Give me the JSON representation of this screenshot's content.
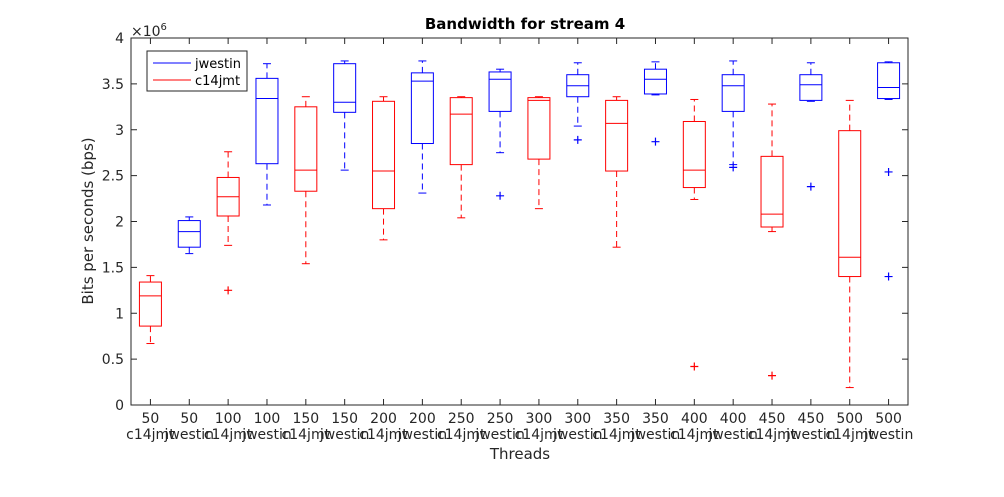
{
  "chart_data": {
    "type": "box",
    "title": "Bandwidth for stream 4",
    "xlabel": "Threads",
    "ylabel": "Bits per seconds (bps)",
    "y_exponent_label": "×10",
    "y_exponent": "6",
    "ylim": [
      0,
      4
    ],
    "yticks": [
      "0",
      "0.5",
      "1",
      "1.5",
      "2",
      "2.5",
      "3",
      "3.5",
      "4"
    ],
    "ytick_values": [
      0,
      0.5,
      1,
      1.5,
      2,
      2.5,
      3,
      3.5,
      4
    ],
    "grid": false,
    "legend_position": "top-left",
    "series": [
      {
        "name": "jwestin",
        "color": "#0000ff"
      },
      {
        "name": "c14jmt",
        "color": "#ff0000"
      }
    ],
    "boxes": [
      {
        "threads": "50",
        "group": "c14jmt",
        "color": "#ff0000",
        "whisker_low": 0.67,
        "q1": 0.86,
        "median": 1.19,
        "q3": 1.34,
        "whisker_high": 1.41,
        "outliers": []
      },
      {
        "threads": "50",
        "group": "jwestin",
        "color": "#0000ff",
        "whisker_low": 1.65,
        "q1": 1.72,
        "median": 1.89,
        "q3": 2.01,
        "whisker_high": 2.05,
        "outliers": []
      },
      {
        "threads": "100",
        "group": "c14jmt",
        "color": "#ff0000",
        "whisker_low": 1.74,
        "q1": 2.06,
        "median": 2.27,
        "q3": 2.48,
        "whisker_high": 2.76,
        "outliers": [
          1.25
        ]
      },
      {
        "threads": "100",
        "group": "jwestin",
        "color": "#0000ff",
        "whisker_low": 2.18,
        "q1": 2.63,
        "median": 3.34,
        "q3": 3.56,
        "whisker_high": 3.72,
        "outliers": []
      },
      {
        "threads": "150",
        "group": "c14jmt",
        "color": "#ff0000",
        "whisker_low": 1.54,
        "q1": 2.33,
        "median": 2.56,
        "q3": 3.25,
        "whisker_high": 3.36,
        "outliers": []
      },
      {
        "threads": "150",
        "group": "jwestin",
        "color": "#0000ff",
        "whisker_low": 2.56,
        "q1": 3.19,
        "median": 3.3,
        "q3": 3.72,
        "whisker_high": 3.75,
        "outliers": []
      },
      {
        "threads": "200",
        "group": "c14jmt",
        "color": "#ff0000",
        "whisker_low": 1.8,
        "q1": 2.14,
        "median": 2.55,
        "q3": 3.31,
        "whisker_high": 3.36,
        "outliers": []
      },
      {
        "threads": "200",
        "group": "jwestin",
        "color": "#0000ff",
        "whisker_low": 2.31,
        "q1": 2.85,
        "median": 3.53,
        "q3": 3.62,
        "whisker_high": 3.75,
        "outliers": []
      },
      {
        "threads": "250",
        "group": "c14jmt",
        "color": "#ff0000",
        "whisker_low": 2.04,
        "q1": 2.62,
        "median": 3.17,
        "q3": 3.35,
        "whisker_high": 3.36,
        "outliers": []
      },
      {
        "threads": "250",
        "group": "jwestin",
        "color": "#0000ff",
        "whisker_low": 2.75,
        "q1": 3.2,
        "median": 3.55,
        "q3": 3.63,
        "whisker_high": 3.66,
        "outliers": [
          2.28
        ]
      },
      {
        "threads": "300",
        "group": "c14jmt",
        "color": "#ff0000",
        "whisker_low": 2.14,
        "q1": 2.68,
        "median": 3.32,
        "q3": 3.35,
        "whisker_high": 3.36,
        "outliers": []
      },
      {
        "threads": "300",
        "group": "jwestin",
        "color": "#0000ff",
        "whisker_low": 3.04,
        "q1": 3.36,
        "median": 3.48,
        "q3": 3.6,
        "whisker_high": 3.73,
        "outliers": [
          2.89
        ]
      },
      {
        "threads": "350",
        "group": "c14jmt",
        "color": "#ff0000",
        "whisker_low": 1.72,
        "q1": 2.55,
        "median": 3.07,
        "q3": 3.32,
        "whisker_high": 3.36,
        "outliers": []
      },
      {
        "threads": "350",
        "group": "jwestin",
        "color": "#0000ff",
        "whisker_low": 3.38,
        "q1": 3.39,
        "median": 3.55,
        "q3": 3.66,
        "whisker_high": 3.74,
        "outliers": [
          2.87
        ]
      },
      {
        "threads": "400",
        "group": "c14jmt",
        "color": "#ff0000",
        "whisker_low": 2.24,
        "q1": 2.37,
        "median": 2.56,
        "q3": 3.09,
        "whisker_high": 3.33,
        "outliers": [
          0.42
        ]
      },
      {
        "threads": "400",
        "group": "jwestin",
        "color": "#0000ff",
        "whisker_low": 2.62,
        "q1": 3.2,
        "median": 3.48,
        "q3": 3.6,
        "whisker_high": 3.75,
        "outliers": [
          2.59
        ]
      },
      {
        "threads": "450",
        "group": "c14jmt",
        "color": "#ff0000",
        "whisker_low": 1.89,
        "q1": 1.94,
        "median": 2.08,
        "q3": 2.71,
        "whisker_high": 3.28,
        "outliers": [
          0.32
        ]
      },
      {
        "threads": "450",
        "group": "jwestin",
        "color": "#0000ff",
        "whisker_low": 3.31,
        "q1": 3.32,
        "median": 3.49,
        "q3": 3.6,
        "whisker_high": 3.73,
        "outliers": [
          2.38
        ]
      },
      {
        "threads": "500",
        "group": "c14jmt",
        "color": "#ff0000",
        "whisker_low": 0.19,
        "q1": 1.4,
        "median": 1.61,
        "q3": 2.99,
        "whisker_high": 3.32,
        "outliers": []
      },
      {
        "threads": "500",
        "group": "jwestin",
        "color": "#0000ff",
        "whisker_low": 3.33,
        "q1": 3.34,
        "median": 3.46,
        "q3": 3.73,
        "whisker_high": 3.74,
        "outliers": [
          2.54,
          1.4
        ]
      }
    ]
  }
}
